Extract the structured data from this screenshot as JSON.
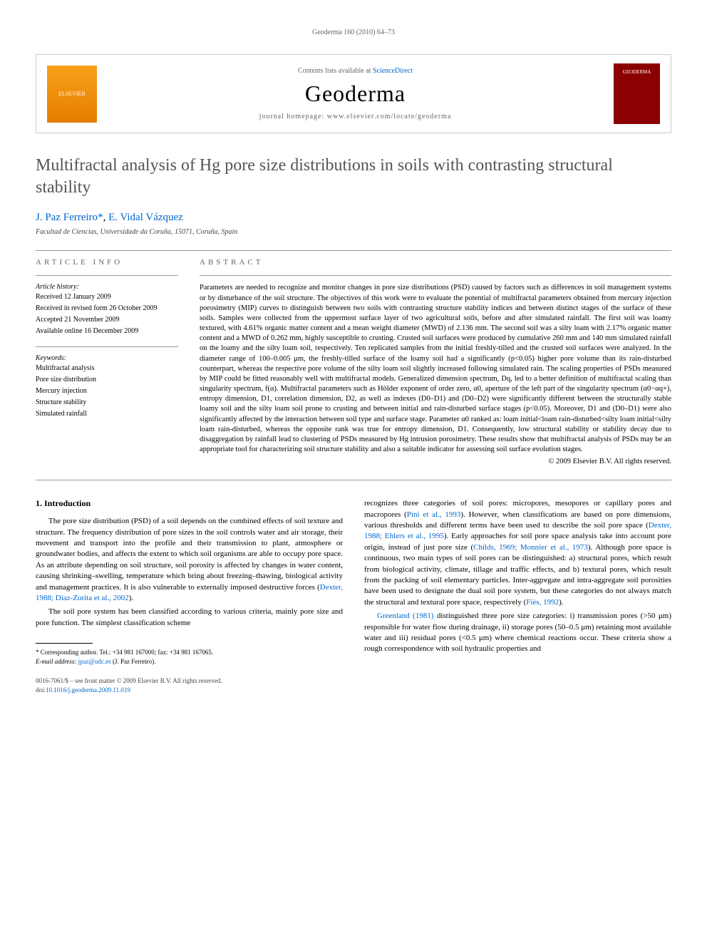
{
  "running_header": "Geoderma 160 (2010) 64–73",
  "masthead": {
    "sciencedirect_pre": "Contents lists available at ",
    "sciencedirect_link": "ScienceDirect",
    "journal_name": "Geoderma",
    "homepage_text": "journal homepage: www.elsevier.com/locate/geoderma",
    "elsevier_label": "ELSEVIER",
    "cover_label": "GEODERMA"
  },
  "article": {
    "title": "Multifractal analysis of Hg pore size distributions in soils with contrasting structural stability",
    "authors": {
      "author1": "J. Paz Ferreiro",
      "corr": "*",
      "sep": ", ",
      "author2": "E. Vidal Vázquez"
    },
    "affiliation": "Facultad de Ciencias, Universidade da Coruña, 15071, Coruña, Spain"
  },
  "info": {
    "heading": "ARTICLE INFO",
    "history_heading": "Article history:",
    "received": "Received 12 January 2009",
    "revised": "Received in revised form 26 October 2009",
    "accepted": "Accepted 21 November 2009",
    "online": "Available online 16 December 2009",
    "keywords_heading": "Keywords:",
    "kw1": "Multifractal analysis",
    "kw2": "Pore size distribution",
    "kw3": "Mercury injection",
    "kw4": "Structure stability",
    "kw5": "Simulated rainfall"
  },
  "abstract": {
    "heading": "ABSTRACT",
    "text": "Parameters are needed to recognize and monitor changes in pore size distributions (PSD) caused by factors such as differences in soil management systems or by disturbance of the soil structure. The objectives of this work were to evaluate the potential of multifractal parameters obtained from mercury injection porosimetry (MIP) curves to distinguish between two soils with contrasting structure stability indices and between distinct stages of the surface of these soils. Samples were collected from the uppermost surface layer of two agricultural soils, before and after simulated rainfall. The first soil was loamy textured, with 4.61% organic matter content and a mean weight diameter (MWD) of 2.136 mm. The second soil was a silty loam with 2.17% organic matter content and a MWD of 0.262 mm, highly susceptible to crusting. Crusted soil surfaces were produced by cumulative 260 mm and 140 mm simulated rainfall on the loamy and the silty loam soil, respectively. Ten replicated samples from the initial freshly-tilled and the crusted soil surfaces were analyzed. In the diameter range of 100–0.005 μm, the freshly-tilled surface of the loamy soil had a significantly (p<0.05) higher pore volume than its rain-disturbed counterpart, whereas the respective pore volume of the silty loam soil slightly increased following simulated rain. The scaling properties of PSDs measured by MIP could be fitted reasonably well with multifractal models. Generalized dimension spectrum, Dq, led to a better definition of multifractal scaling than singularity spectrum, f(α). Multifractal parameters such as Hölder exponent of order zero, α0, aperture of the left part of the singularity spectrum (α0−αq+), entropy dimension, D1, correlation dimension, D2, as well as indexes (D0–D1) and (D0–D2) were significantly different between the structurally stable loamy soil and the silty loam soil prone to crusting and between initial and rain-disturbed surface stages (p<0.05). Moreover, D1 and (D0–D1) were also significantly affected by the interaction between soil type and surface stage. Parameter α0 ranked as: loam initial<loam rain-disturbed<silty loam initial<silty loam rain-disturbed, whereas the opposite rank was true for entropy dimension, D1. Consequently, low structural stability or stability decay due to disaggregation by rainfall lead to clustering of PSDs measured by Hg intrusion porosimetry. These results show that multifractal analysis of PSDs may be an appropriate tool for characterizing soil structure stability and also a suitable indicator for assessing soil surface evolution stages.",
    "copyright": "© 2009 Elsevier B.V. All rights reserved."
  },
  "body": {
    "section_heading": "1. Introduction",
    "col1_p1_a": "The pore size distribution (PSD) of a soil depends on the combined effects of soil texture and structure. The frequency distribution of pore sizes in the soil controls water and air storage, their movement and transport into the profile and their transmission to plant, atmosphere or groundwater bodies, and affects the extent to which soil organisms are able to occupy pore space. As an attribute depending on soil structure, soil porosity is affected by changes in water content, causing shrinking–swelling, temperature which bring about freezing–thawing, biological activity and management practices. It is also vulnerable to externally imposed destructive forces (",
    "col1_p1_ref": "Dexter, 1988; Díaz-Zorita et al., 2002",
    "col1_p1_b": ").",
    "col1_p2": "The soil pore system has been classified according to various criteria, mainly pore size and pore function. The simplest classification scheme",
    "col2_p1_a": "recognizes three categories of soil pores: micropores, mesopores or capillary pores and macropores (",
    "col2_p1_ref1": "Pini et al., 1993",
    "col2_p1_b": "). However, when classifications are based on pore dimensions, various thresholds and different terms have been used to describe the soil pore space (",
    "col2_p1_ref2": "Dexter, 1988; Ehlers et al., 1995",
    "col2_p1_c": "). Early approaches for soil pore space analysis take into account pore origin, instead of just pore size (",
    "col2_p1_ref3": "Childs, 1969; Monnier et al., 1973",
    "col2_p1_d": "). Although pore space is continuous, two main types of soil pores can be distinguished: a) structural pores, which result from biological activity, climate, tillage and traffic effects, and b) textural pores, which result from the packing of soil elementary particles. Inter-aggregate and intra-aggregate soil porosities have been used to designate the dual soil pore system, but these categories do not always match the structural and textural pore space, respectively (",
    "col2_p1_ref4": "Fiès, 1992",
    "col2_p1_e": ").",
    "col2_p2_ref": "Greenland (1981)",
    "col2_p2": " distinguished three pore size categories: i) transmission pores (>50 μm) responsible for water flow during drainage, ii) storage pores (50–0.5 μm) retaining most available water and iii) residual pores (<0.5 μm) where chemical reactions occur. These criteria show a rough correspondence with soil hydraulic properties and"
  },
  "footnote": {
    "corr_text": "* Corresponding author. Tel.: +34 981 167000; fax: +34 981 167065.",
    "email_label": "E-mail address: ",
    "email": "jpaz@udc.es",
    "email_author": " (J. Paz Ferreiro)."
  },
  "footer": {
    "issn": "0016-7061/$ – see front matter © 2009 Elsevier B.V. All rights reserved.",
    "doi_label": "doi:",
    "doi": "10.1016/j.geoderma.2009.11.019"
  }
}
